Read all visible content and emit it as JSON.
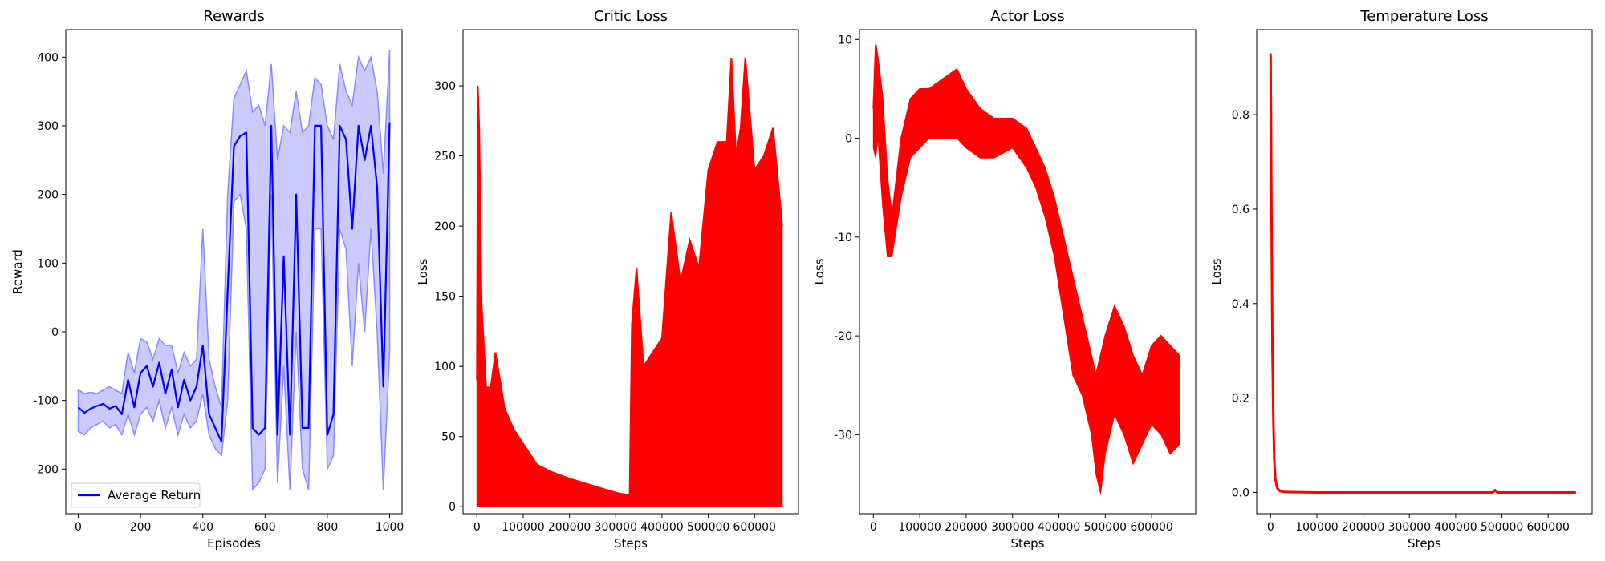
{
  "chart_data": [
    {
      "type": "line",
      "title": "Rewards",
      "xlabel": "Episodes",
      "ylabel": "Reward",
      "xlim": [
        -40,
        1040
      ],
      "ylim": [
        -265,
        440
      ],
      "xticks": [
        0,
        200,
        400,
        600,
        800,
        1000
      ],
      "yticks": [
        -200,
        -100,
        0,
        100,
        200,
        300,
        400
      ],
      "grid": false,
      "legend_position": "lower-left",
      "colors": {
        "main": "#0000ff",
        "band": "#8a8aff"
      },
      "series": [
        {
          "name": "Average Return",
          "role": "mean",
          "x": [
            0,
            20,
            40,
            60,
            80,
            100,
            120,
            140,
            160,
            180,
            200,
            220,
            240,
            260,
            280,
            300,
            320,
            340,
            360,
            380,
            400,
            420,
            440,
            460,
            480,
            500,
            520,
            540,
            560,
            580,
            600,
            620,
            640,
            660,
            680,
            700,
            720,
            740,
            760,
            780,
            800,
            820,
            840,
            860,
            880,
            900,
            920,
            940,
            960,
            980,
            1000
          ],
          "y": [
            -110,
            -118,
            -112,
            -108,
            -105,
            -112,
            -108,
            -120,
            -70,
            -110,
            -60,
            -50,
            -80,
            -45,
            -90,
            -55,
            -110,
            -70,
            -100,
            -80,
            -20,
            -120,
            -140,
            -160,
            60,
            270,
            285,
            290,
            -140,
            -150,
            -140,
            300,
            -150,
            110,
            -150,
            200,
            -140,
            -140,
            300,
            300,
            -150,
            -120,
            300,
            280,
            150,
            300,
            250,
            300,
            210,
            -80,
            305
          ]
        },
        {
          "name": "",
          "role": "band-upper",
          "x": [
            0,
            20,
            40,
            60,
            80,
            100,
            120,
            140,
            160,
            180,
            200,
            220,
            240,
            260,
            280,
            300,
            320,
            340,
            360,
            380,
            400,
            420,
            440,
            460,
            480,
            500,
            520,
            540,
            560,
            580,
            600,
            620,
            640,
            660,
            680,
            700,
            720,
            740,
            760,
            780,
            800,
            820,
            840,
            860,
            880,
            900,
            920,
            940,
            960,
            980,
            1000
          ],
          "y": [
            -85,
            -90,
            -88,
            -90,
            -85,
            -80,
            -85,
            -90,
            -30,
            -60,
            -10,
            -15,
            -40,
            -10,
            -20,
            -20,
            -60,
            -30,
            -50,
            -40,
            150,
            -40,
            -80,
            -110,
            200,
            340,
            360,
            380,
            320,
            330,
            300,
            390,
            250,
            300,
            290,
            350,
            290,
            300,
            370,
            360,
            300,
            280,
            390,
            350,
            330,
            400,
            380,
            400,
            350,
            230,
            410
          ]
        },
        {
          "name": "",
          "role": "band-lower",
          "x": [
            0,
            20,
            40,
            60,
            80,
            100,
            120,
            140,
            160,
            180,
            200,
            220,
            240,
            260,
            280,
            300,
            320,
            340,
            360,
            380,
            400,
            420,
            440,
            460,
            480,
            500,
            520,
            540,
            560,
            580,
            600,
            620,
            640,
            660,
            680,
            700,
            720,
            740,
            760,
            780,
            800,
            820,
            840,
            860,
            880,
            900,
            920,
            940,
            960,
            980,
            1000
          ],
          "y": [
            -145,
            -150,
            -140,
            -135,
            -130,
            -140,
            -135,
            -150,
            -120,
            -150,
            -120,
            -110,
            -130,
            -100,
            -140,
            -110,
            -150,
            -120,
            -140,
            -130,
            -90,
            -150,
            -170,
            -180,
            -100,
            190,
            200,
            150,
            -230,
            -220,
            -200,
            200,
            -220,
            -50,
            -230,
            0,
            -200,
            -230,
            150,
            150,
            -200,
            -180,
            150,
            120,
            -50,
            100,
            0,
            150,
            0,
            -230,
            -30
          ]
        }
      ]
    },
    {
      "type": "line",
      "title": "Critic Loss",
      "xlabel": "Steps",
      "ylabel": "Loss",
      "xlim": [
        -30000,
        695000
      ],
      "ylim": [
        -5,
        340
      ],
      "xticks": [
        0,
        100000,
        200000,
        300000,
        400000,
        500000,
        600000
      ],
      "yticks": [
        0,
        50,
        100,
        150,
        200,
        250,
        300
      ],
      "grid": false,
      "colors": {
        "main": "#ff0000"
      },
      "series": [
        {
          "name": "",
          "role": "envelope-upper",
          "x": [
            0,
            2000,
            5000,
            10000,
            20000,
            30000,
            40000,
            50000,
            60000,
            80000,
            100000,
            130000,
            160000,
            200000,
            250000,
            300000,
            330000,
            335000,
            345000,
            360000,
            380000,
            400000,
            420000,
            440000,
            460000,
            480000,
            500000,
            520000,
            540000,
            550000,
            560000,
            570000,
            580000,
            600000,
            620000,
            640000,
            660000
          ],
          "y": [
            90,
            300,
            270,
            145,
            85,
            85,
            110,
            90,
            70,
            55,
            45,
            30,
            25,
            20,
            15,
            10,
            8,
            130,
            170,
            100,
            110,
            120,
            210,
            160,
            190,
            170,
            240,
            260,
            260,
            320,
            250,
            270,
            320,
            240,
            250,
            270,
            200
          ]
        },
        {
          "name": "",
          "role": "envelope-lower",
          "x": [
            0,
            330000,
            335000,
            660000
          ],
          "y": [
            0,
            0,
            0,
            0
          ]
        }
      ]
    },
    {
      "type": "line",
      "title": "Actor Loss",
      "xlabel": "Steps",
      "ylabel": "Loss",
      "xlim": [
        -30000,
        695000
      ],
      "ylim": [
        -38,
        11
      ],
      "xticks": [
        0,
        100000,
        200000,
        300000,
        400000,
        500000,
        600000
      ],
      "yticks": [
        -30,
        -20,
        -10,
        0,
        10
      ],
      "grid": false,
      "colors": {
        "main": "#ff0000"
      },
      "series": [
        {
          "name": "",
          "role": "envelope-upper",
          "x": [
            0,
            5000,
            10000,
            20000,
            30000,
            40000,
            60000,
            80000,
            100000,
            120000,
            150000,
            180000,
            200000,
            230000,
            260000,
            300000,
            330000,
            350000,
            370000,
            390000,
            410000,
            430000,
            450000,
            470000,
            480000,
            490000,
            500000,
            520000,
            540000,
            560000,
            580000,
            600000,
            620000,
            640000,
            660000
          ],
          "y": [
            3,
            9.5,
            8,
            4,
            -4,
            -8,
            0,
            4,
            5,
            5,
            6,
            7,
            5,
            3,
            2,
            2,
            1,
            -1,
            -3,
            -6,
            -10,
            -14,
            -18,
            -22,
            -24,
            -22,
            -20,
            -17,
            -19,
            -22,
            -24,
            -21,
            -20,
            -21,
            -22
          ]
        },
        {
          "name": "",
          "role": "envelope-lower",
          "x": [
            0,
            5000,
            10000,
            20000,
            30000,
            40000,
            60000,
            80000,
            100000,
            120000,
            150000,
            180000,
            200000,
            230000,
            260000,
            300000,
            330000,
            350000,
            370000,
            390000,
            410000,
            430000,
            450000,
            470000,
            480000,
            490000,
            500000,
            520000,
            540000,
            560000,
            580000,
            600000,
            620000,
            640000,
            660000
          ],
          "y": [
            -1,
            -2,
            0,
            -7,
            -12,
            -12,
            -6,
            -2,
            -1,
            0,
            0,
            0,
            -1,
            -2,
            -2,
            -1,
            -3,
            -5,
            -8,
            -12,
            -18,
            -24,
            -26,
            -30,
            -34,
            -36,
            -32,
            -28,
            -30,
            -33,
            -31,
            -29,
            -30,
            -32,
            -31
          ]
        }
      ]
    },
    {
      "type": "line",
      "title": "Temperature Loss",
      "xlabel": "Steps",
      "ylabel": "Loss",
      "xlim": [
        -30000,
        695000
      ],
      "ylim": [
        -0.045,
        0.98
      ],
      "xticks": [
        0,
        100000,
        200000,
        300000,
        400000,
        500000,
        600000
      ],
      "yticks": [
        0.0,
        0.2,
        0.4,
        0.6,
        0.8
      ],
      "ytick_labels": [
        "0.0",
        "0.2",
        "0.4",
        "0.6",
        "0.8"
      ],
      "grid": false,
      "colors": {
        "main": "#ff0000"
      },
      "series": [
        {
          "name": "",
          "role": "line",
          "x": [
            0,
            1000,
            2000,
            3000,
            4000,
            6000,
            8000,
            10000,
            14000,
            20000,
            30000,
            100000,
            300000,
            480000,
            485000,
            490000,
            660000
          ],
          "y": [
            0.93,
            0.75,
            0.6,
            0.45,
            0.3,
            0.15,
            0.07,
            0.03,
            0.01,
            0.003,
            0.001,
            0.0,
            0.0,
            0.0,
            0.005,
            0.0,
            0.0
          ]
        }
      ]
    }
  ]
}
